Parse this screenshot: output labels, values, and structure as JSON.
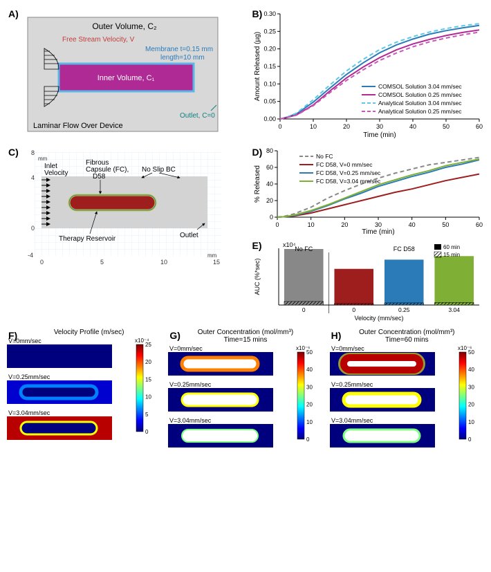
{
  "A": {
    "title": "Laminar Flow Over Device",
    "outer_vol": "Outer Volume, C₂",
    "inner_vol": "Inner Volume, C₁",
    "free_stream": "Free Stream Velocity, V",
    "membrane": "Membrane t=0.15 mm",
    "length_label": "length=10 mm",
    "outlet": "Outlet, C=0",
    "colors": {
      "bg": "#d3d3d3",
      "inner": "#b02a95",
      "membrane": "#5bb5e8",
      "text_blue": "#2b7bb9",
      "text_red": "#c33c3c",
      "text_teal": "#0f7f7f"
    }
  },
  "B": {
    "xlabel": "Time (min)",
    "ylabel": "Amount Released (µg)",
    "xlim": [
      0,
      60
    ],
    "xtick_step": 10,
    "ylim": [
      0,
      0.3
    ],
    "ytick_step": 0.05,
    "series": [
      {
        "label": "COMSOL Solution 3.04 mm/sec",
        "color": "#2b7bb9",
        "dash": "solid"
      },
      {
        "label": "COMSOL Solution 0.25 mm/sec",
        "color": "#b02a95",
        "dash": "solid"
      },
      {
        "label": "Analytical Solution 3.04 mm/sec",
        "color": "#5bc8e8",
        "dash": "dash"
      },
      {
        "label": "Analytical Solution 0.25 mm/sec",
        "color": "#c858b5",
        "dash": "dash"
      }
    ],
    "data": {
      "x": [
        0,
        2,
        5,
        10,
        15,
        20,
        25,
        30,
        35,
        40,
        45,
        50,
        55,
        60
      ],
      "comsol_304": [
        0,
        0.005,
        0.015,
        0.048,
        0.088,
        0.127,
        0.16,
        0.189,
        0.211,
        0.228,
        0.242,
        0.252,
        0.26,
        0.267
      ],
      "comsol_025": [
        0,
        0.004,
        0.012,
        0.04,
        0.08,
        0.117,
        0.148,
        0.175,
        0.197,
        0.214,
        0.227,
        0.238,
        0.247,
        0.254
      ],
      "analyt_304": [
        0,
        0.005,
        0.017,
        0.055,
        0.097,
        0.137,
        0.17,
        0.198,
        0.219,
        0.235,
        0.248,
        0.258,
        0.266,
        0.272
      ],
      "analyt_025": [
        0,
        0.004,
        0.011,
        0.038,
        0.075,
        0.11,
        0.14,
        0.167,
        0.188,
        0.206,
        0.22,
        0.231,
        0.24,
        0.248
      ]
    },
    "font_size": 10
  },
  "C": {
    "xlabel_units": "mm",
    "labels": {
      "inlet": "Inlet Velocity",
      "fc": "Fibrous Capsule (FC), D58",
      "noslip": "No Slip BC",
      "reservoir": "Therapy Reservoir",
      "outlet": "Outlet"
    },
    "xlim": [
      0,
      15
    ],
    "ylim": [
      -4,
      8
    ],
    "x_ticks": [
      0,
      5,
      10,
      15
    ],
    "y_ticks": [
      -4,
      0,
      4,
      8
    ],
    "colors": {
      "domain_bg": "#d3d3d3",
      "reservoir": "#9e1e1e",
      "fc_ring": "#c8c830",
      "membrane": "#2b7bb9"
    }
  },
  "D": {
    "xlabel": "Time (min)",
    "ylabel": "% Released",
    "xlim": [
      0,
      60
    ],
    "xtick_step": 10,
    "ylim": [
      0,
      80
    ],
    "ytick_step": 20,
    "series": [
      {
        "label": "No FC",
        "color": "#888888",
        "dash": "dash"
      },
      {
        "label": "FC D58, V=0 mm/sec",
        "color": "#9e1e1e",
        "dash": "solid"
      },
      {
        "label": "FC D58, V=0.25 mm/sec",
        "color": "#2b7bb9",
        "dash": "solid"
      },
      {
        "label": "FC D58, V=3.04 mm/sec",
        "color": "#7fb035",
        "dash": "solid"
      }
    ],
    "data": {
      "x": [
        0,
        2,
        5,
        10,
        15,
        20,
        25,
        30,
        35,
        40,
        45,
        50,
        55,
        60
      ],
      "nofc": [
        0,
        1,
        4,
        12,
        23,
        32,
        40,
        47,
        53,
        58,
        63,
        66,
        69,
        72
      ],
      "v0": [
        0,
        0.5,
        1.5,
        5,
        10,
        15,
        20,
        25,
        30,
        34,
        39,
        44,
        48,
        52
      ],
      "v025": [
        0,
        0.5,
        2,
        7,
        14,
        22,
        29,
        37,
        43,
        49,
        54,
        60,
        64,
        69
      ],
      "v304": [
        0,
        0.5,
        2.5,
        8,
        15,
        23,
        31,
        39,
        45,
        51,
        56,
        62,
        66,
        70
      ]
    }
  },
  "E": {
    "xlabel": "Velocity (mm/sec)",
    "ylabel": "AUC (%*sec)",
    "y_exp": "x10⁴",
    "group1": "No FC",
    "group2": "FC D58",
    "legend": {
      "solid": "60 min",
      "hatch": "15 min"
    },
    "bars": [
      {
        "cat": "0",
        "val60": 15.8,
        "val15": 1.0,
        "color": "#888888"
      },
      {
        "cat": "0",
        "val60": 10.2,
        "val15": 0.4,
        "color": "#9e1e1e"
      },
      {
        "cat": "0.25",
        "val60": 12.8,
        "val15": 0.6,
        "color": "#2b7bb9"
      },
      {
        "cat": "3.04",
        "val60": 13.8,
        "val15": 0.7,
        "color": "#7fb035"
      }
    ],
    "ylim": [
      0,
      16
    ]
  },
  "F": {
    "title": "Velocity Profile (m/sec)",
    "exp": "x10⁻⁴",
    "cbar_ticks": [
      0,
      5,
      10,
      15,
      20,
      25
    ],
    "rows": [
      {
        "label": "V=0mm/sec"
      },
      {
        "label": "V=0.25mm/sec"
      },
      {
        "label": "V=3.04mm/sec"
      }
    ]
  },
  "G": {
    "title": "Outer Concentration (mol/mm³)",
    "subtitle": "Time=15 mins",
    "exp": "x10⁻⁶",
    "cbar_ticks": [
      0,
      10,
      20,
      30,
      40,
      50
    ],
    "rows": [
      {
        "label": "V=0mm/sec"
      },
      {
        "label": "V=0.25mm/sec"
      },
      {
        "label": "V=3.04mm/sec"
      }
    ]
  },
  "H": {
    "title": "Outer Concentration (mol/mm³)",
    "subtitle": "Time=60 mins",
    "exp": "x10⁻⁶",
    "cbar_ticks": [
      0,
      10,
      20,
      30,
      40,
      50
    ],
    "rows": [
      {
        "label": "V=0mm/sec"
      },
      {
        "label": "V=0.25mm/sec"
      },
      {
        "label": "V=3.04mm/sec"
      }
    ]
  },
  "colormap": {
    "jet": [
      "#00007f",
      "#0000ff",
      "#007fff",
      "#00ffff",
      "#7fff7f",
      "#ffff00",
      "#ff7f00",
      "#ff0000",
      "#7f0000"
    ]
  }
}
